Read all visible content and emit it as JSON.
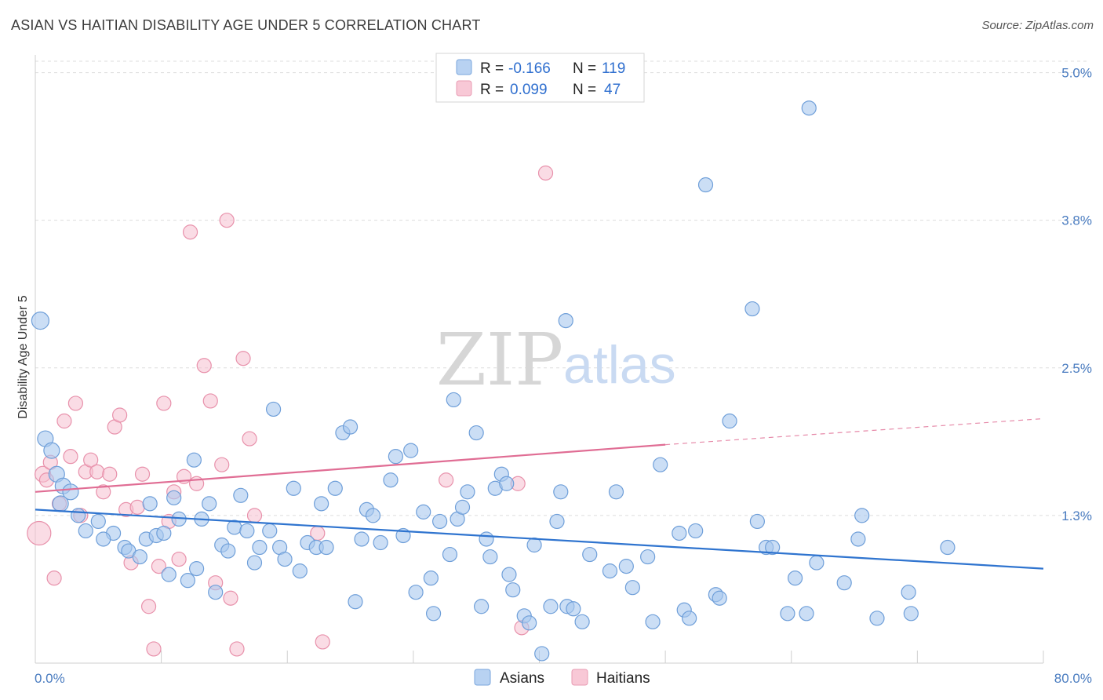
{
  "title": "ASIAN VS HAITIAN DISABILITY AGE UNDER 5 CORRELATION CHART",
  "source": "Source: ZipAtlas.com",
  "watermark": {
    "zip": "ZIP",
    "atlas": "atlas"
  },
  "colors": {
    "asians_fill": "#a9c8ef",
    "asians_stroke": "#6f9fd9",
    "asians_line": "#2f74cf",
    "haitians_fill": "#f5c0cf",
    "haitians_stroke": "#e891ab",
    "haitians_line": "#e06d94",
    "grid": "#dddddd",
    "tick_label": "#4a7cc0"
  },
  "legend": {
    "rows": [
      {
        "r_label": "R =",
        "r_value": "-0.166",
        "n_label": "N =",
        "n_value": "119"
      },
      {
        "r_label": "R =",
        "r_value": "0.099",
        "n_label": "N =",
        "n_value": "47"
      }
    ]
  },
  "bottom_legend": [
    "Asians",
    "Haitians"
  ],
  "chart_data": {
    "type": "scatter",
    "title": "ASIAN VS HAITIAN DISABILITY AGE UNDER 5 CORRELATION CHART",
    "xlabel": "",
    "ylabel": "Disability Age Under 5",
    "xlim": [
      0,
      80
    ],
    "ylim": [
      0,
      5.15
    ],
    "x_tick_labels": [
      "0.0%",
      "80.0%"
    ],
    "y_ticks": [
      1.25,
      2.5,
      3.75,
      5.0
    ],
    "y_tick_labels": [
      "1.3%",
      "2.5%",
      "3.8%",
      "5.0%"
    ],
    "grid": true,
    "legend_position": "top-center",
    "series": [
      {
        "name": "Asians",
        "trend": {
          "x": [
            0,
            80
          ],
          "y": [
            1.3,
            0.8
          ]
        },
        "points": [
          [
            0.4,
            2.9,
            11
          ],
          [
            0.8,
            1.9,
            10
          ],
          [
            1.3,
            1.8,
            10
          ],
          [
            1.7,
            1.6,
            10
          ],
          [
            2.2,
            1.5,
            10
          ],
          [
            2.8,
            1.45,
            10
          ],
          [
            2.0,
            1.35,
            10
          ],
          [
            3.4,
            1.25,
            9
          ],
          [
            4.0,
            1.12,
            9
          ],
          [
            5.0,
            1.2,
            9
          ],
          [
            6.2,
            1.1,
            9
          ],
          [
            5.4,
            1.05,
            9
          ],
          [
            7.1,
            0.98,
            9
          ],
          [
            7.4,
            0.95,
            9
          ],
          [
            8.3,
            0.9,
            9
          ],
          [
            8.8,
            1.05,
            9
          ],
          [
            9.6,
            1.08,
            9
          ],
          [
            10.2,
            1.1,
            9
          ],
          [
            9.1,
            1.35,
            9
          ],
          [
            10.6,
            0.75,
            9
          ],
          [
            11.0,
            1.4,
            9
          ],
          [
            11.4,
            1.22,
            9
          ],
          [
            12.1,
            0.7,
            9
          ],
          [
            12.6,
            1.72,
            9
          ],
          [
            12.8,
            0.8,
            9
          ],
          [
            13.2,
            1.22,
            9
          ],
          [
            13.8,
            1.35,
            9
          ],
          [
            14.3,
            0.6,
            9
          ],
          [
            14.8,
            1.0,
            9
          ],
          [
            15.3,
            0.95,
            9
          ],
          [
            15.8,
            1.15,
            9
          ],
          [
            16.3,
            1.42,
            9
          ],
          [
            16.8,
            1.12,
            9
          ],
          [
            17.4,
            0.85,
            9
          ],
          [
            17.8,
            0.98,
            9
          ],
          [
            18.6,
            1.12,
            9
          ],
          [
            18.9,
            2.15,
            9
          ],
          [
            19.4,
            0.98,
            9
          ],
          [
            19.8,
            0.88,
            9
          ],
          [
            20.5,
            1.48,
            9
          ],
          [
            21.0,
            0.78,
            9
          ],
          [
            21.6,
            1.02,
            9
          ],
          [
            22.3,
            0.98,
            9
          ],
          [
            23.1,
            0.98,
            9
          ],
          [
            22.7,
            1.35,
            9
          ],
          [
            23.8,
            1.48,
            9
          ],
          [
            24.4,
            1.95,
            9
          ],
          [
            25.0,
            2.0,
            9
          ],
          [
            25.4,
            0.52,
            9
          ],
          [
            25.9,
            1.05,
            9
          ],
          [
            26.3,
            1.3,
            9
          ],
          [
            26.8,
            1.25,
            9
          ],
          [
            27.4,
            1.02,
            9
          ],
          [
            28.2,
            1.55,
            9
          ],
          [
            28.6,
            1.75,
            9
          ],
          [
            29.2,
            1.08,
            9
          ],
          [
            29.8,
            1.8,
            9
          ],
          [
            30.2,
            0.6,
            9
          ],
          [
            30.8,
            1.28,
            9
          ],
          [
            31.4,
            0.72,
            9
          ],
          [
            31.6,
            0.42,
            9
          ],
          [
            32.1,
            1.2,
            9
          ],
          [
            32.9,
            0.92,
            9
          ],
          [
            33.2,
            2.23,
            9
          ],
          [
            33.5,
            1.22,
            9
          ],
          [
            33.9,
            1.32,
            9
          ],
          [
            34.3,
            1.45,
            9
          ],
          [
            35.0,
            1.95,
            9
          ],
          [
            35.4,
            0.48,
            9
          ],
          [
            35.8,
            1.05,
            9
          ],
          [
            36.1,
            0.9,
            9
          ],
          [
            36.5,
            1.48,
            9
          ],
          [
            37.0,
            1.6,
            9
          ],
          [
            37.4,
            1.52,
            9
          ],
          [
            37.6,
            0.75,
            9
          ],
          [
            37.9,
            0.62,
            9
          ],
          [
            38.8,
            0.4,
            9
          ],
          [
            39.2,
            0.34,
            9
          ],
          [
            39.6,
            1.0,
            9
          ],
          [
            40.2,
            0.08,
            9
          ],
          [
            40.9,
            0.48,
            9
          ],
          [
            41.4,
            1.2,
            9
          ],
          [
            41.7,
            1.45,
            9
          ],
          [
            42.1,
            2.9,
            9
          ],
          [
            42.2,
            0.48,
            9
          ],
          [
            42.7,
            0.46,
            9
          ],
          [
            43.4,
            0.35,
            9
          ],
          [
            44.0,
            0.92,
            9
          ],
          [
            45.6,
            0.78,
            9
          ],
          [
            46.1,
            1.45,
            9
          ],
          [
            46.9,
            0.82,
            9
          ],
          [
            47.4,
            0.64,
            9
          ],
          [
            48.6,
            0.9,
            9
          ],
          [
            49.0,
            0.35,
            9
          ],
          [
            49.6,
            1.68,
            9
          ],
          [
            51.1,
            1.1,
            9
          ],
          [
            51.5,
            0.45,
            9
          ],
          [
            51.9,
            0.38,
            9
          ],
          [
            52.4,
            1.12,
            9
          ],
          [
            53.2,
            4.05,
            9
          ],
          [
            54.0,
            0.58,
            9
          ],
          [
            54.3,
            0.55,
            9
          ],
          [
            55.1,
            2.05,
            9
          ],
          [
            56.9,
            3.0,
            9
          ],
          [
            57.3,
            1.2,
            9
          ],
          [
            58.0,
            0.98,
            9
          ],
          [
            58.5,
            0.98,
            9
          ],
          [
            59.7,
            0.42,
            9
          ],
          [
            60.3,
            0.72,
            9
          ],
          [
            61.2,
            0.42,
            9
          ],
          [
            62.0,
            0.85,
            9
          ],
          [
            64.2,
            0.68,
            9
          ],
          [
            65.3,
            1.05,
            9
          ],
          [
            65.6,
            1.25,
            9
          ],
          [
            66.8,
            0.38,
            9
          ],
          [
            69.3,
            0.6,
            9
          ],
          [
            69.5,
            0.42,
            9
          ],
          [
            72.4,
            0.98,
            9
          ],
          [
            61.4,
            4.7,
            9
          ]
        ]
      },
      {
        "name": "Haitians",
        "trend": {
          "x": [
            0,
            50
          ],
          "y": [
            1.45,
            1.85
          ]
        },
        "trend_extension": {
          "x": [
            50,
            80
          ],
          "y": [
            1.85,
            2.07
          ]
        },
        "points": [
          [
            0.3,
            1.1,
            15
          ],
          [
            0.6,
            1.6,
            10
          ],
          [
            0.9,
            1.55,
            9
          ],
          [
            1.2,
            1.7,
            9
          ],
          [
            1.5,
            0.72,
            9
          ],
          [
            1.9,
            1.35,
            9
          ],
          [
            2.3,
            2.05,
            9
          ],
          [
            2.8,
            1.75,
            9
          ],
          [
            3.2,
            2.2,
            9
          ],
          [
            3.6,
            1.25,
            9
          ],
          [
            4.0,
            1.62,
            9
          ],
          [
            4.4,
            1.72,
            9
          ],
          [
            4.9,
            1.62,
            9
          ],
          [
            5.4,
            1.45,
            9
          ],
          [
            5.9,
            1.6,
            9
          ],
          [
            6.3,
            2.0,
            9
          ],
          [
            6.7,
            2.1,
            9
          ],
          [
            7.2,
            1.3,
            9
          ],
          [
            7.6,
            0.85,
            9
          ],
          [
            8.1,
            1.32,
            9
          ],
          [
            8.5,
            1.6,
            9
          ],
          [
            9.0,
            0.48,
            9
          ],
          [
            9.4,
            0.12,
            9
          ],
          [
            9.8,
            0.82,
            9
          ],
          [
            10.2,
            2.2,
            9
          ],
          [
            10.6,
            1.2,
            9
          ],
          [
            11.0,
            1.45,
            9
          ],
          [
            11.4,
            0.88,
            9
          ],
          [
            11.8,
            1.58,
            9
          ],
          [
            12.3,
            3.65,
            9
          ],
          [
            12.8,
            1.52,
            9
          ],
          [
            13.4,
            2.52,
            9
          ],
          [
            13.9,
            2.22,
            9
          ],
          [
            14.3,
            0.68,
            9
          ],
          [
            14.8,
            1.68,
            9
          ],
          [
            15.2,
            3.75,
            9
          ],
          [
            15.5,
            0.55,
            9
          ],
          [
            16.0,
            0.12,
            9
          ],
          [
            16.5,
            2.58,
            9
          ],
          [
            17.0,
            1.9,
            9
          ],
          [
            17.4,
            1.25,
            9
          ],
          [
            22.4,
            1.1,
            9
          ],
          [
            22.8,
            0.18,
            9
          ],
          [
            32.6,
            1.55,
            9
          ],
          [
            38.3,
            1.52,
            9
          ],
          [
            38.6,
            0.3,
            9
          ],
          [
            40.5,
            4.15,
            9
          ]
        ]
      }
    ]
  }
}
